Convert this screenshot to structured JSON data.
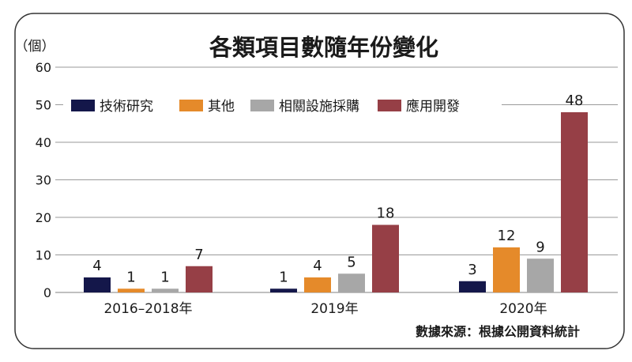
{
  "chart_data": {
    "type": "bar",
    "title": "各類項目數隨年份變化",
    "unit_label": "（個）",
    "xlabel": "",
    "ylabel": "（個）",
    "ylim": [
      0,
      60
    ],
    "yticks": [
      0,
      10,
      20,
      30,
      40,
      50,
      60
    ],
    "ytick_labels": [
      "0",
      "10",
      "20",
      "30",
      "40",
      "50",
      "60"
    ],
    "grid": true,
    "legend_position": "top-left",
    "categories": [
      "2016–2018年",
      "2019年",
      "2020年"
    ],
    "series": [
      {
        "name": "技術研究",
        "color": "#14174a",
        "values": [
          4,
          1,
          3
        ]
      },
      {
        "name": "其他",
        "color": "#e58a2a",
        "values": [
          1,
          4,
          12
        ]
      },
      {
        "name": "相關設施採購",
        "color": "#a7a7a7",
        "values": [
          1,
          5,
          9
        ]
      },
      {
        "name": "應用開發",
        "color": "#963f46",
        "values": [
          7,
          18,
          48
        ]
      }
    ],
    "source": "數據來源：根據公開資料統計"
  },
  "colors": {
    "frame_border": "#333333",
    "gridline": "#9a9a9a",
    "text": "#1a1a1a"
  }
}
